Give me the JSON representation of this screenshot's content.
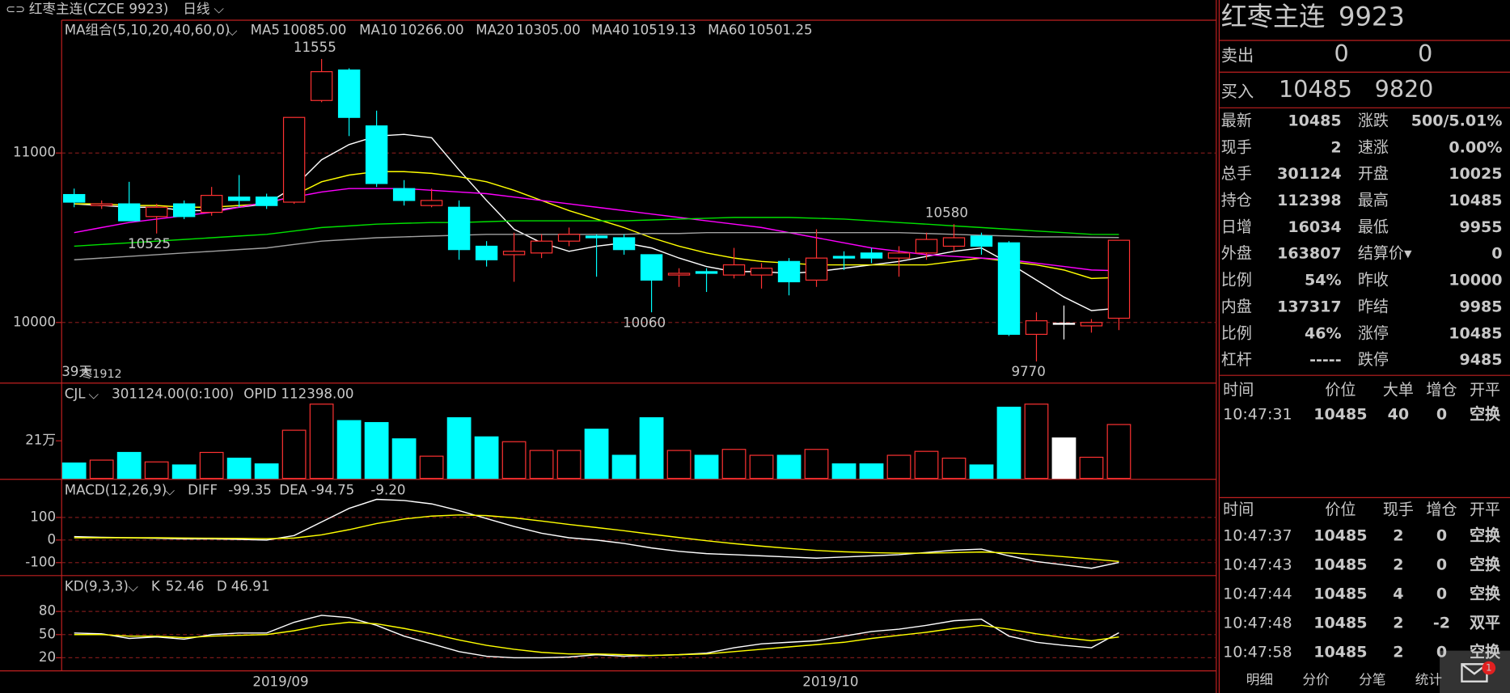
{
  "toolbar": {
    "symbol": "红枣主连(CZCE 9923)",
    "period": "日线"
  },
  "chart_data": [
    {
      "type": "candlestick",
      "title": "MA组合(5,10,20,40,60,0)",
      "categories": [
        null,
        null,
        null,
        null,
        null,
        null,
        null,
        null,
        "2019/09",
        null,
        null,
        null,
        null,
        null,
        null,
        null,
        null,
        null,
        null,
        null,
        null,
        null,
        null,
        null,
        null,
        null,
        null,
        null,
        "2019/10",
        null,
        null,
        null,
        null,
        null,
        null,
        null,
        null,
        null,
        null
      ],
      "open": [
        10755,
        10690,
        10700,
        10625,
        10700,
        10650,
        10740,
        10740,
        10710,
        11310,
        11490,
        11160,
        10790,
        10690,
        10680,
        10450,
        10400,
        10410,
        10480,
        10510,
        10500,
        10400,
        10280,
        10300,
        10280,
        10280,
        10360,
        10250,
        10390,
        10410,
        10380,
        10410,
        10450,
        10510,
        10470,
        9930,
        9995,
        9980,
        10025
      ],
      "high": [
        10790,
        10720,
        10830,
        10700,
        10720,
        10800,
        10870,
        10760,
        11210,
        11555,
        11500,
        11250,
        10840,
        10790,
        10720,
        10480,
        10530,
        10520,
        10560,
        10520,
        10520,
        10400,
        10320,
        10320,
        10440,
        10350,
        10380,
        10550,
        10420,
        10440,
        10450,
        10530,
        10580,
        10530,
        10480,
        10060,
        10100,
        10020,
        10485
      ],
      "low": [
        10680,
        10670,
        10600,
        10525,
        10610,
        10630,
        10680,
        10670,
        10700,
        11300,
        11100,
        10800,
        10690,
        10680,
        10370,
        10330,
        10240,
        10380,
        10450,
        10270,
        10400,
        10060,
        10210,
        10180,
        10260,
        10200,
        10160,
        10210,
        10310,
        10350,
        10270,
        10370,
        10420,
        10400,
        9920,
        9770,
        9900,
        9940,
        9955
      ],
      "close": [
        10710,
        10700,
        10600,
        10680,
        10625,
        10750,
        10720,
        10690,
        11210,
        11480,
        11210,
        10820,
        10720,
        10720,
        10430,
        10370,
        10420,
        10480,
        10520,
        10500,
        10430,
        10250,
        10290,
        10290,
        10340,
        10320,
        10240,
        10380,
        10380,
        10380,
        10410,
        10490,
        10500,
        10450,
        9930,
        10010,
        9995,
        10000,
        10485
      ],
      "ylim": [
        9648,
        11778
      ],
      "yticks": [
        10000,
        11000
      ],
      "grid": true,
      "series": [
        {
          "name": "MA5",
          "label": "10085.00",
          "color": "#ffffff",
          "values": [
            10700,
            10690,
            10680,
            10680,
            10660,
            10660,
            10680,
            10700,
            10800,
            10960,
            11050,
            11100,
            11110,
            11090,
            10900,
            10720,
            10550,
            10470,
            10420,
            10450,
            10470,
            10440,
            10380,
            10330,
            10300,
            10300,
            10290,
            10300,
            10320,
            10340,
            10360,
            10390,
            10420,
            10440,
            10350,
            10250,
            10150,
            10070,
            10085
          ]
        },
        {
          "name": "MA10",
          "label": "10266.00",
          "color": "#ffff00",
          "values": [
            10700,
            10700,
            10690,
            10690,
            10680,
            10680,
            10690,
            10700,
            10750,
            10830,
            10870,
            10890,
            10890,
            10880,
            10860,
            10830,
            10780,
            10720,
            10660,
            10610,
            10560,
            10500,
            10450,
            10410,
            10380,
            10360,
            10350,
            10340,
            10340,
            10340,
            10340,
            10340,
            10360,
            10380,
            10360,
            10340,
            10310,
            10260,
            10266
          ]
        },
        {
          "name": "MA20",
          "label": "10305.00",
          "color": "#ff00ff",
          "values": [
            10530,
            10560,
            10590,
            10610,
            10630,
            10650,
            10680,
            10710,
            10740,
            10770,
            10790,
            10790,
            10790,
            10780,
            10770,
            10760,
            10740,
            10720,
            10700,
            10680,
            10660,
            10640,
            10620,
            10600,
            10580,
            10560,
            10530,
            10500,
            10470,
            10440,
            10420,
            10400,
            10390,
            10380,
            10370,
            10350,
            10330,
            10310,
            10305
          ]
        },
        {
          "name": "MA40",
          "label": "10519.13",
          "color": "#00e000",
          "values": [
            10450,
            10460,
            10470,
            10480,
            10490,
            10500,
            10510,
            10520,
            10540,
            10560,
            10570,
            10580,
            10585,
            10590,
            10590,
            10595,
            10600,
            10600,
            10600,
            10600,
            10600,
            10605,
            10610,
            10615,
            10620,
            10620,
            10620,
            10615,
            10610,
            10600,
            10590,
            10580,
            10570,
            10560,
            10550,
            10540,
            10530,
            10520,
            10519.13
          ]
        },
        {
          "name": "MA60",
          "label": "10501.25",
          "color": "#a0a0a0",
          "values": [
            10370,
            10380,
            10390,
            10400,
            10410,
            10420,
            10430,
            10440,
            10460,
            10480,
            10490,
            10500,
            10505,
            10510,
            10515,
            10520,
            10520,
            10520,
            10520,
            10520,
            10520,
            10525,
            10525,
            10530,
            10530,
            10530,
            10530,
            10530,
            10530,
            10530,
            10530,
            10525,
            10520,
            10515,
            10510,
            10505,
            10505,
            10502,
            10501.25
          ]
        }
      ],
      "annotations": [
        "11555",
        "10525",
        "10060",
        "9770",
        "10580"
      ],
      "footer_notes": [
        "39天",
        "枣1912"
      ]
    },
    {
      "type": "bar",
      "title": "CJL",
      "subtitle": "301124.00(0:100)",
      "annotation": "OPID 112398.00",
      "values": [
        86000,
        102000,
        145000,
        92000,
        75000,
        145000,
        113000,
        81000,
        269000,
        415000,
        323000,
        312000,
        221000,
        124000,
        339000,
        232000,
        205000,
        156000,
        156000,
        275000,
        129000,
        339000,
        156000,
        129000,
        162000,
        129000,
        129000,
        162000,
        81000,
        81000,
        129000,
        151000,
        113000,
        75000,
        398000,
        415000,
        226000,
        118000,
        301124
      ],
      "ylim": [
        0,
        522000
      ],
      "yticks": [
        {
          "value": 210000,
          "label": "21万"
        }
      ]
    },
    {
      "type": "line",
      "title": "MACD(12,26,9)",
      "annotation": "-9.20",
      "ylim": [
        -153,
        260
      ],
      "yticks": [
        100,
        0,
        -100
      ],
      "grid": true,
      "series": [
        {
          "name": "DIFF",
          "label": "-99.35",
          "color": "#ffffff",
          "values": [
            15,
            12,
            10,
            8,
            5,
            5,
            3,
            0,
            20,
            80,
            140,
            180,
            175,
            160,
            130,
            95,
            60,
            30,
            10,
            0,
            -15,
            -35,
            -50,
            -60,
            -65,
            -70,
            -75,
            -80,
            -75,
            -70,
            -65,
            -55,
            -45,
            -40,
            -70,
            -95,
            -110,
            -125,
            -99.35
          ]
        },
        {
          "name": "DEA",
          "label": "-94.75",
          "color": "#ffff00",
          "values": [
            10,
            10,
            10,
            10,
            9,
            8,
            7,
            6,
            9,
            23,
            46,
            73,
            93,
            106,
            111,
            108,
            98,
            84,
            69,
            55,
            41,
            26,
            11,
            -3,
            -16,
            -27,
            -37,
            -46,
            -52,
            -56,
            -58,
            -58,
            -56,
            -53,
            -57,
            -64,
            -74,
            -84,
            -94.75
          ]
        }
      ]
    },
    {
      "type": "line",
      "title": "KD(9,3,3)",
      "ylim": [
        3,
        124
      ],
      "yticks": [
        80,
        50,
        20
      ],
      "grid": true,
      "series": [
        {
          "name": "K",
          "label": "52.46",
          "color": "#ffffff",
          "values": [
            52,
            51,
            45,
            47,
            44,
            50,
            52,
            52,
            66,
            75,
            72,
            62,
            48,
            38,
            28,
            22,
            20,
            20,
            21,
            24,
            22,
            23,
            24,
            26,
            33,
            38,
            40,
            42,
            48,
            54,
            57,
            62,
            68,
            70,
            48,
            40,
            36,
            33,
            52.46
          ]
        },
        {
          "name": "D",
          "label": "46.91",
          "color": "#ffff00",
          "values": [
            50,
            50,
            48,
            48,
            46,
            48,
            49,
            50,
            55,
            62,
            66,
            64,
            58,
            51,
            43,
            36,
            31,
            27,
            25,
            25,
            24,
            23,
            24,
            25,
            28,
            31,
            34,
            37,
            40,
            45,
            49,
            53,
            58,
            62,
            57,
            51,
            46,
            42,
            46.91
          ]
        }
      ]
    }
  ],
  "quote": {
    "name": "红枣主连",
    "code": "9923",
    "sell": {
      "label": "卖出",
      "price": "0",
      "qty": "0"
    },
    "buy": {
      "label": "买入",
      "price": "10485",
      "qty": "9820"
    },
    "stats": [
      [
        {
          "text": "最新"
        },
        {
          "text": "10485",
          "color": "#ff3232"
        },
        {
          "text": "涨跌"
        },
        {
          "text": "500/5.01%",
          "color": "#ff3232"
        }
      ],
      [
        {
          "text": "现手"
        },
        {
          "text": "2",
          "color": "#ffff00"
        },
        {
          "text": "速涨"
        },
        {
          "text": "0.00%",
          "color": "#ffffff"
        }
      ],
      [
        {
          "text": "总手"
        },
        {
          "text": "301124",
          "color": "#ffff00"
        },
        {
          "text": "开盘"
        },
        {
          "text": "10025",
          "color": "#ff3232"
        }
      ],
      [
        {
          "text": "持仓"
        },
        {
          "text": "112398",
          "color": "#ffff00"
        },
        {
          "text": "最高"
        },
        {
          "text": "10485",
          "color": "#ff3232"
        }
      ],
      [
        {
          "text": "日增"
        },
        {
          "text": "16034",
          "color": "#ffff00"
        },
        {
          "text": "最低"
        },
        {
          "text": "9955",
          "color": "#00e000"
        }
      ],
      [
        {
          "text": "外盘"
        },
        {
          "text": "163807",
          "color": "#ffff00"
        },
        {
          "text": "结算价▾"
        },
        {
          "text": "0",
          "color": "#ffffff"
        }
      ],
      [
        {
          "text": "比例"
        },
        {
          "text": "54%",
          "color": "#ffff00"
        },
        {
          "text": "昨收"
        },
        {
          "text": "10000",
          "color": "#ffffff"
        }
      ],
      [
        {
          "text": "内盘"
        },
        {
          "text": "137317",
          "color": "#ffff00"
        },
        {
          "text": "昨结"
        },
        {
          "text": "9985",
          "color": "#ffffff"
        }
      ],
      [
        {
          "text": "比例"
        },
        {
          "text": "46%",
          "color": "#ffff00"
        },
        {
          "text": "涨停"
        },
        {
          "text": "10485",
          "color": "#ff3232"
        }
      ],
      [
        {
          "text": "杠杆"
        },
        {
          "text": "-----",
          "color": "#ffff00"
        },
        {
          "text": "跌停"
        },
        {
          "text": "9485",
          "color": "#00e000"
        }
      ]
    ]
  },
  "big_trades": {
    "header": [
      "时间",
      "价位",
      "大单",
      "增仓",
      "开平"
    ],
    "rows": [
      [
        "10:47:31",
        "10485",
        "40",
        "0",
        "空换"
      ]
    ]
  },
  "ticks": {
    "header": [
      "时间",
      "价位",
      "现手",
      "增仓",
      "开平"
    ],
    "rows": [
      [
        "10:47:37",
        "10485",
        "2",
        "0",
        "空换"
      ],
      [
        "10:47:43",
        "10485",
        "2",
        "0",
        "空换"
      ],
      [
        "10:47:44",
        "10485",
        "4",
        "0",
        "空换"
      ],
      [
        "10:47:48",
        "10485",
        "2",
        "-2",
        "双平"
      ],
      [
        "10:47:58",
        "10485",
        "2",
        "0",
        "空换"
      ]
    ]
  },
  "tabs": [
    "明细",
    "分价",
    "分笔",
    "统计"
  ],
  "notification_count": "1"
}
